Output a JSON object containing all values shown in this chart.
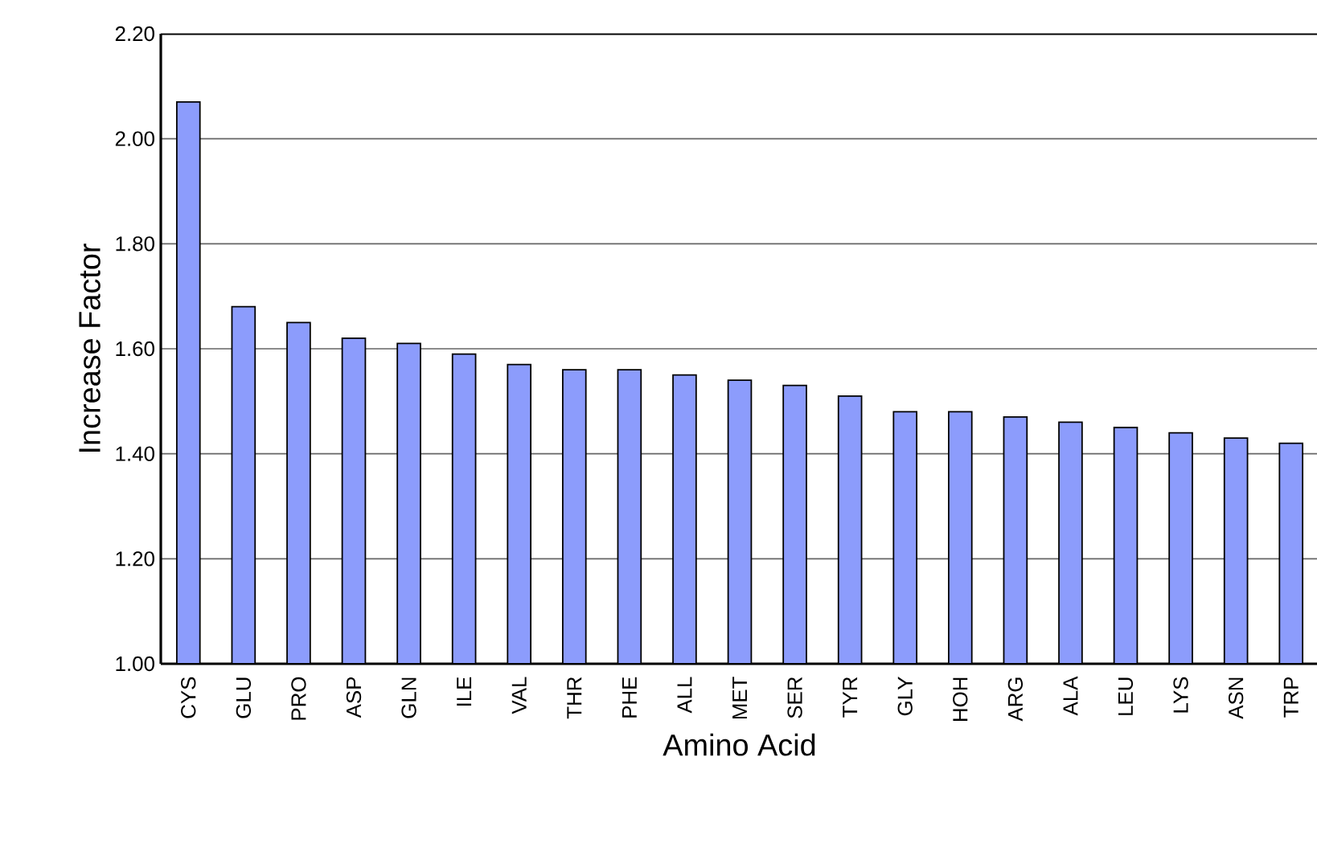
{
  "chart_data": {
    "type": "bar",
    "xlabel": "Amino Acid",
    "ylabel": "Increase Factor",
    "categories": [
      "CYS",
      "GLU",
      "PRO",
      "ASP",
      "GLN",
      "ILE",
      "VAL",
      "THR",
      "PHE",
      "ALL",
      "MET",
      "SER",
      "TYR",
      "GLY",
      "HOH",
      "ARG",
      "ALA",
      "LEU",
      "LYS",
      "ASN",
      "TRP"
    ],
    "values": [
      2.07,
      1.68,
      1.65,
      1.62,
      1.61,
      1.59,
      1.57,
      1.56,
      1.56,
      1.55,
      1.54,
      1.53,
      1.51,
      1.48,
      1.48,
      1.47,
      1.46,
      1.45,
      1.44,
      1.43,
      1.42
    ],
    "color": "#8c9cfc",
    "ylim": [
      1.0,
      2.2
    ],
    "yticks": [
      {
        "value": 1.0,
        "label": "1.00"
      },
      {
        "value": 1.2,
        "label": "1.20"
      },
      {
        "value": 1.4,
        "label": "1.40"
      },
      {
        "value": 1.6,
        "label": "1.60"
      },
      {
        "value": 1.8,
        "label": "1.80"
      },
      {
        "value": 2.0,
        "label": "2.00"
      },
      {
        "value": 2.2,
        "label": "2.20"
      }
    ],
    "grid": "y"
  }
}
